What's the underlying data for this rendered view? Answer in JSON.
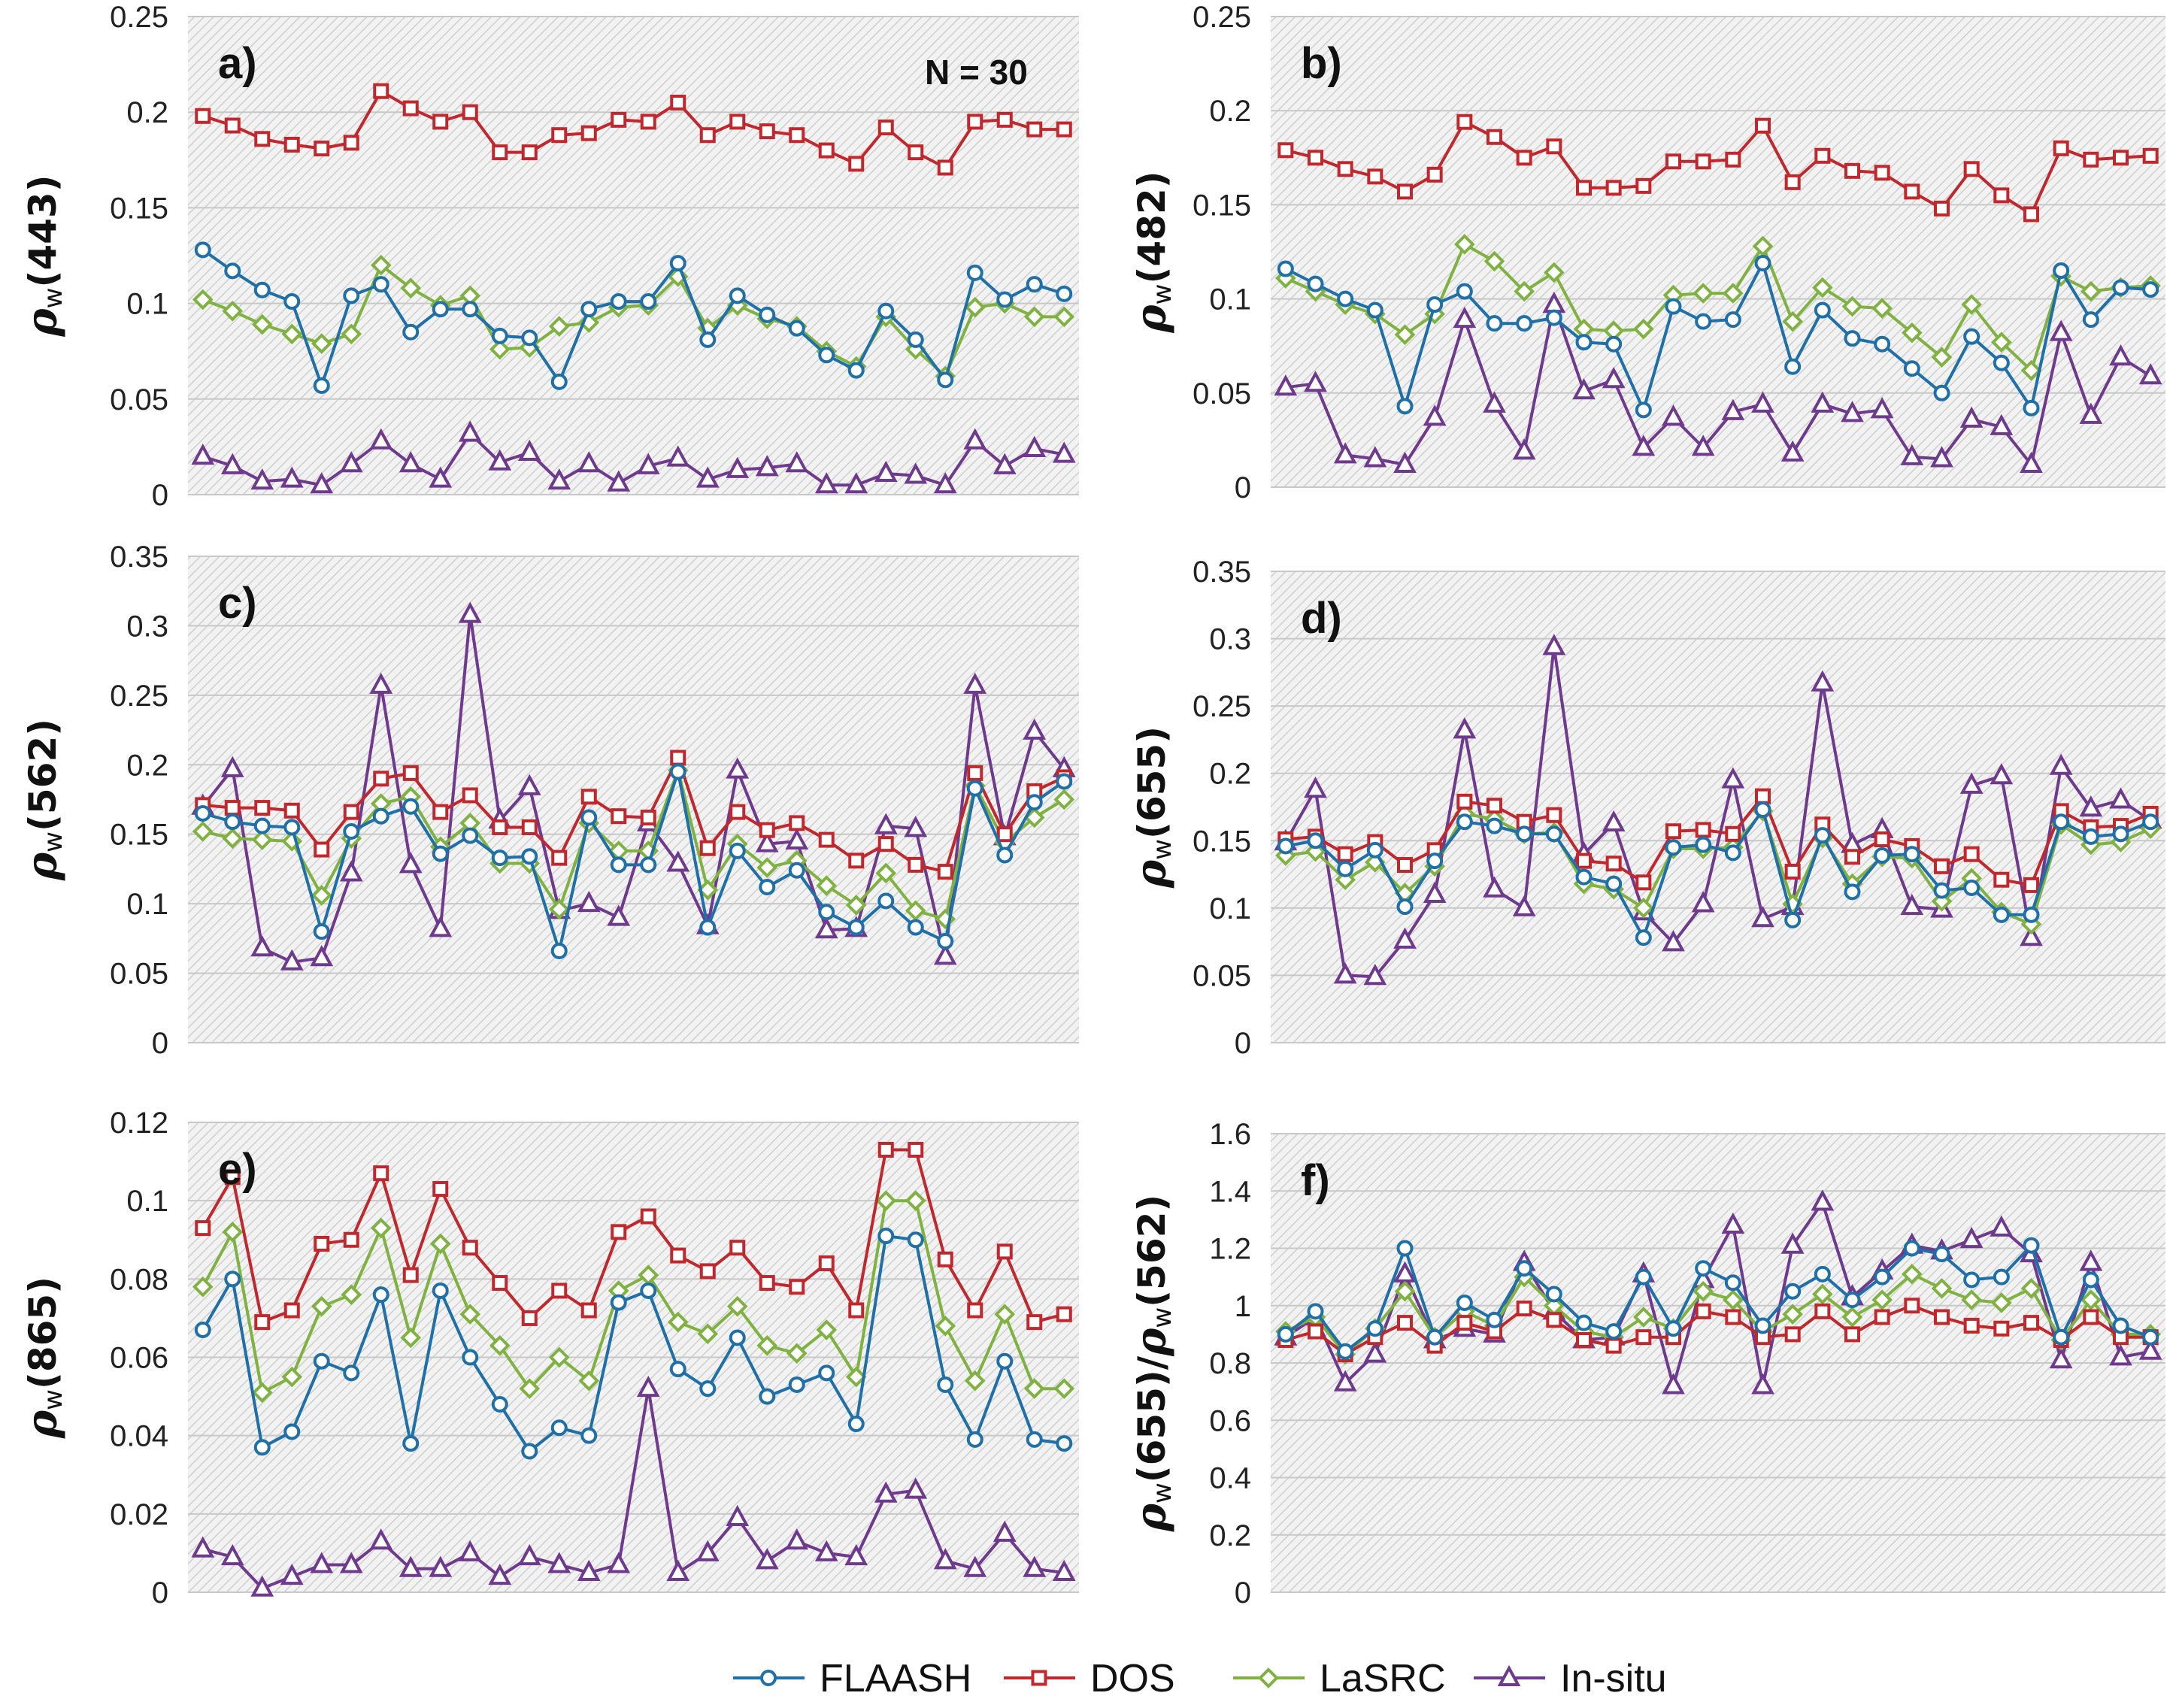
{
  "figure": {
    "n_label": "N = 30",
    "legend": [
      {
        "name": "FLAASH",
        "color": "#1f6fa8",
        "marker": "circle"
      },
      {
        "name": "DOS",
        "color": "#c0282d",
        "marker": "square"
      },
      {
        "name": "LaSRC",
        "color": "#7fb241",
        "marker": "diamond"
      },
      {
        "name": "In-situ",
        "color": "#6f3a8e",
        "marker": "triangle"
      }
    ]
  },
  "chart_data": [
    {
      "type": "line",
      "panel": "a)",
      "ylabel": "ρw(443)",
      "ylabel_sym": "ρ",
      "ylabel_sub": "w",
      "ylabel_rest": "(443)",
      "ylim": [
        0,
        0.25
      ],
      "yticks": [
        0,
        0.05,
        0.1,
        0.15,
        0.2,
        0.25
      ],
      "ytick_labels": [
        "0",
        "0.05",
        "0.1",
        "0.15",
        "0.2",
        "0.25"
      ],
      "series": [
        {
          "name": "FLAASH",
          "values": [
            0.128,
            0.117,
            0.107,
            0.101,
            0.057,
            0.104,
            0.11,
            0.085,
            0.097,
            0.097,
            0.083,
            0.082,
            0.059,
            0.097,
            0.101,
            0.101,
            0.121,
            0.081,
            0.104,
            0.094,
            0.087,
            0.073,
            0.065,
            0.096,
            0.081,
            0.06,
            0.116,
            0.102,
            0.11,
            0.105
          ]
        },
        {
          "name": "DOS",
          "values": [
            0.198,
            0.193,
            0.186,
            0.183,
            0.181,
            0.184,
            0.211,
            0.202,
            0.195,
            0.2,
            0.179,
            0.179,
            0.188,
            0.189,
            0.196,
            0.195,
            0.205,
            0.188,
            0.195,
            0.19,
            0.188,
            0.18,
            0.173,
            0.192,
            0.179,
            0.171,
            0.195,
            0.196,
            0.191,
            0.191
          ]
        },
        {
          "name": "LaSRC",
          "values": [
            0.102,
            0.096,
            0.089,
            0.084,
            0.079,
            0.084,
            0.12,
            0.108,
            0.099,
            0.104,
            0.076,
            0.077,
            0.088,
            0.09,
            0.098,
            0.099,
            0.114,
            0.087,
            0.099,
            0.092,
            0.088,
            0.075,
            0.067,
            0.093,
            0.076,
            0.062,
            0.098,
            0.1,
            0.093,
            0.093
          ]
        },
        {
          "name": "In-situ",
          "values": [
            0.02,
            0.015,
            0.007,
            0.008,
            0.005,
            0.016,
            0.028,
            0.016,
            0.008,
            0.032,
            0.017,
            0.022,
            0.007,
            0.016,
            0.006,
            0.015,
            0.019,
            0.008,
            0.013,
            0.014,
            0.016,
            0.005,
            0.005,
            0.011,
            0.01,
            0.005,
            0.028,
            0.015,
            0.024,
            0.021
          ]
        }
      ]
    },
    {
      "type": "line",
      "panel": "b)",
      "ylabel": "ρw(482)",
      "ylabel_sym": "ρ",
      "ylabel_sub": "w",
      "ylabel_rest": "(482)",
      "ylim": [
        0,
        0.25
      ],
      "yticks": [
        0,
        0.05,
        0.1,
        0.15,
        0.2,
        0.25
      ],
      "ytick_labels": [
        "0",
        "0.05",
        "0.1",
        "0.15",
        "0.2",
        "0.25"
      ],
      "series": [
        {
          "name": "FLAASH",
          "values": [
            0.116,
            0.108,
            0.1,
            0.094,
            0.043,
            0.097,
            0.104,
            0.087,
            0.087,
            0.09,
            0.077,
            0.076,
            0.041,
            0.096,
            0.088,
            0.089,
            0.119,
            0.064,
            0.094,
            0.079,
            0.076,
            0.063,
            0.05,
            0.08,
            0.066,
            0.042,
            0.115,
            0.089,
            0.106,
            0.105
          ]
        },
        {
          "name": "DOS",
          "values": [
            0.179,
            0.175,
            0.169,
            0.165,
            0.157,
            0.166,
            0.194,
            0.186,
            0.175,
            0.181,
            0.159,
            0.159,
            0.16,
            0.173,
            0.173,
            0.174,
            0.192,
            0.162,
            0.176,
            0.168,
            0.167,
            0.157,
            0.148,
            0.169,
            0.155,
            0.145,
            0.18,
            0.174,
            0.175,
            0.176
          ]
        },
        {
          "name": "LaSRC",
          "values": [
            0.111,
            0.104,
            0.097,
            0.092,
            0.081,
            0.092,
            0.129,
            0.12,
            0.104,
            0.114,
            0.084,
            0.083,
            0.084,
            0.102,
            0.103,
            0.103,
            0.128,
            0.088,
            0.106,
            0.096,
            0.095,
            0.082,
            0.069,
            0.097,
            0.077,
            0.062,
            0.112,
            0.104,
            0.106,
            0.107
          ]
        },
        {
          "name": "In-situ",
          "values": [
            0.053,
            0.055,
            0.017,
            0.015,
            0.012,
            0.037,
            0.089,
            0.044,
            0.019,
            0.097,
            0.051,
            0.057,
            0.021,
            0.037,
            0.021,
            0.04,
            0.044,
            0.018,
            0.044,
            0.039,
            0.041,
            0.016,
            0.015,
            0.036,
            0.032,
            0.012,
            0.082,
            0.038,
            0.069,
            0.059
          ]
        }
      ]
    },
    {
      "type": "line",
      "panel": "c)",
      "ylabel": "ρw(562)",
      "ylabel_sym": "ρ",
      "ylabel_sub": "w",
      "ylabel_rest": "(562)",
      "ylim": [
        0,
        0.35
      ],
      "yticks": [
        0,
        0.05,
        0.1,
        0.15,
        0.2,
        0.25,
        0.3,
        0.35
      ],
      "ytick_labels": [
        "0",
        "0.05",
        "0.1",
        "0.15",
        "0.2",
        "0.25",
        "0.3",
        "0.35"
      ],
      "series": [
        {
          "name": "FLAASH",
          "values": [
            0.165,
            0.159,
            0.156,
            0.155,
            0.08,
            0.152,
            0.163,
            0.17,
            0.136,
            0.149,
            0.133,
            0.134,
            0.066,
            0.162,
            0.128,
            0.128,
            0.195,
            0.083,
            0.138,
            0.112,
            0.124,
            0.094,
            0.083,
            0.102,
            0.083,
            0.073,
            0.183,
            0.135,
            0.173,
            0.188
          ]
        },
        {
          "name": "DOS",
          "values": [
            0.171,
            0.169,
            0.169,
            0.167,
            0.139,
            0.166,
            0.19,
            0.194,
            0.166,
            0.178,
            0.155,
            0.155,
            0.133,
            0.177,
            0.163,
            0.162,
            0.205,
            0.14,
            0.166,
            0.153,
            0.158,
            0.146,
            0.131,
            0.143,
            0.128,
            0.123,
            0.194,
            0.15,
            0.181,
            0.191
          ]
        },
        {
          "name": "LaSRC",
          "values": [
            0.152,
            0.147,
            0.146,
            0.145,
            0.106,
            0.147,
            0.172,
            0.177,
            0.141,
            0.158,
            0.129,
            0.129,
            0.096,
            0.158,
            0.138,
            0.138,
            0.196,
            0.11,
            0.143,
            0.126,
            0.131,
            0.113,
            0.099,
            0.122,
            0.095,
            0.089,
            0.185,
            0.144,
            0.162,
            0.175
          ]
        },
        {
          "name": "In-situ",
          "values": [
            0.17,
            0.197,
            0.068,
            0.058,
            0.061,
            0.122,
            0.257,
            0.128,
            0.082,
            0.308,
            0.16,
            0.184,
            0.095,
            0.1,
            0.09,
            0.158,
            0.129,
            0.084,
            0.196,
            0.143,
            0.145,
            0.081,
            0.082,
            0.156,
            0.154,
            0.062,
            0.257,
            0.148,
            0.224,
            0.197
          ]
        }
      ]
    },
    {
      "type": "line",
      "panel": "d)",
      "ylabel": "ρw(655)",
      "ylabel_sym": "ρ",
      "ylabel_sub": "w",
      "ylabel_rest": "(655)",
      "ylim": [
        0,
        0.35
      ],
      "yticks": [
        0,
        0.05,
        0.1,
        0.15,
        0.2,
        0.25,
        0.3,
        0.35
      ],
      "ytick_labels": [
        "0",
        "0.05",
        "0.1",
        "0.15",
        "0.2",
        "0.25",
        "0.3",
        "0.35"
      ],
      "series": [
        {
          "name": "FLAASH",
          "values": [
            0.146,
            0.15,
            0.129,
            0.143,
            0.101,
            0.135,
            0.164,
            0.161,
            0.155,
            0.155,
            0.123,
            0.118,
            0.078,
            0.145,
            0.147,
            0.141,
            0.173,
            0.091,
            0.154,
            0.112,
            0.139,
            0.14,
            0.113,
            0.115,
            0.095,
            0.095,
            0.164,
            0.153,
            0.155,
            0.164
          ]
        },
        {
          "name": "DOS",
          "values": [
            0.151,
            0.153,
            0.14,
            0.149,
            0.132,
            0.143,
            0.179,
            0.176,
            0.164,
            0.169,
            0.135,
            0.133,
            0.119,
            0.157,
            0.158,
            0.155,
            0.183,
            0.127,
            0.162,
            0.138,
            0.151,
            0.146,
            0.131,
            0.14,
            0.121,
            0.117,
            0.172,
            0.16,
            0.161,
            0.17
          ]
        },
        {
          "name": "LaSRC",
          "values": [
            0.139,
            0.142,
            0.121,
            0.134,
            0.111,
            0.131,
            0.17,
            0.166,
            0.155,
            0.156,
            0.118,
            0.114,
            0.1,
            0.144,
            0.144,
            0.145,
            0.172,
            0.103,
            0.152,
            0.118,
            0.138,
            0.137,
            0.105,
            0.122,
            0.097,
            0.088,
            0.162,
            0.147,
            0.149,
            0.159
          ]
        },
        {
          "name": "In-situ",
          "values": [
            0.149,
            0.188,
            0.05,
            0.049,
            0.076,
            0.11,
            0.232,
            0.114,
            0.1,
            0.294,
            0.14,
            0.163,
            0.097,
            0.074,
            0.103,
            0.195,
            0.092,
            0.101,
            0.267,
            0.147,
            0.158,
            0.101,
            0.099,
            0.191,
            0.198,
            0.078,
            0.205,
            0.174,
            0.18,
            0.165
          ]
        }
      ]
    },
    {
      "type": "line",
      "panel": "e)",
      "ylabel": "ρw(865)",
      "ylabel_sym": "ρ",
      "ylabel_sub": "w",
      "ylabel_rest": "(865)",
      "ylim": [
        0,
        0.12
      ],
      "yticks": [
        0,
        0.02,
        0.04,
        0.06,
        0.08,
        0.1,
        0.12
      ],
      "ytick_labels": [
        "0",
        "0.02",
        "0.04",
        "0.06",
        "0.08",
        "0.1",
        "0.12"
      ],
      "series": [
        {
          "name": "FLAASH",
          "values": [
            0.067,
            0.08,
            0.037,
            0.041,
            0.059,
            0.056,
            0.076,
            0.038,
            0.077,
            0.06,
            0.048,
            0.036,
            0.042,
            0.04,
            0.074,
            0.077,
            0.057,
            0.052,
            0.065,
            0.05,
            0.053,
            0.056,
            0.043,
            0.091,
            0.09,
            0.053,
            0.039,
            0.059,
            0.039,
            0.038
          ]
        },
        {
          "name": "DOS",
          "values": [
            0.093,
            0.106,
            0.069,
            0.072,
            0.089,
            0.09,
            0.107,
            0.081,
            0.103,
            0.088,
            0.079,
            0.07,
            0.077,
            0.072,
            0.092,
            0.096,
            0.086,
            0.082,
            0.088,
            0.079,
            0.078,
            0.084,
            0.072,
            0.113,
            0.113,
            0.085,
            0.072,
            0.087,
            0.069,
            0.071
          ]
        },
        {
          "name": "LaSRC",
          "values": [
            0.078,
            0.092,
            0.051,
            0.055,
            0.073,
            0.076,
            0.093,
            0.065,
            0.089,
            0.071,
            0.063,
            0.052,
            0.06,
            0.054,
            0.077,
            0.081,
            0.069,
            0.066,
            0.073,
            0.063,
            0.061,
            0.067,
            0.055,
            0.1,
            0.1,
            0.068,
            0.054,
            0.071,
            0.052,
            0.052
          ]
        },
        {
          "name": "In-situ",
          "values": [
            0.011,
            0.009,
            0.001,
            0.004,
            0.007,
            0.007,
            0.013,
            0.006,
            0.006,
            0.01,
            0.004,
            0.009,
            0.007,
            0.005,
            0.007,
            0.052,
            0.005,
            0.01,
            0.019,
            0.008,
            0.013,
            0.01,
            0.009,
            0.025,
            0.026,
            0.008,
            0.006,
            0.015,
            0.006,
            0.005
          ]
        }
      ]
    },
    {
      "type": "line",
      "panel": "f)",
      "ylabel": "ρw(655)/ρw(562)",
      "ylabel_sym": "ρ",
      "ylabel_sub": "w",
      "ylabel_rest": "(655)/",
      "ylabel_sym2": "ρ",
      "ylabel_sub2": "w",
      "ylabel_rest2": "(562)",
      "ylim": [
        0,
        1.6
      ],
      "yticks": [
        0,
        0.2,
        0.4,
        0.6,
        0.8,
        1,
        1.2,
        1.4,
        1.6
      ],
      "ytick_labels": [
        "0",
        "0.2",
        "0.4",
        "0.6",
        "0.8",
        "1",
        "1.2",
        "1.4",
        "1.6"
      ],
      "series": [
        {
          "name": "FLAASH",
          "values": [
            0.9,
            0.98,
            0.84,
            0.92,
            1.2,
            0.89,
            1.01,
            0.95,
            1.13,
            1.04,
            0.94,
            0.91,
            1.1,
            0.92,
            1.13,
            1.08,
            0.93,
            1.05,
            1.11,
            1.02,
            1.1,
            1.2,
            1.18,
            1.09,
            1.1,
            1.21,
            0.89,
            1.09,
            0.93,
            0.89
          ]
        },
        {
          "name": "DOS",
          "values": [
            0.88,
            0.91,
            0.83,
            0.89,
            0.94,
            0.86,
            0.94,
            0.91,
            0.99,
            0.95,
            0.88,
            0.86,
            0.89,
            0.89,
            0.98,
            0.96,
            0.89,
            0.9,
            0.98,
            0.9,
            0.96,
            1.0,
            0.96,
            0.93,
            0.92,
            0.94,
            0.88,
            0.96,
            0.89,
            0.89
          ]
        },
        {
          "name": "LaSRC",
          "values": [
            0.91,
            0.96,
            0.83,
            0.92,
            1.05,
            0.89,
            0.98,
            0.93,
            1.1,
            1.0,
            0.91,
            0.89,
            0.96,
            0.92,
            1.05,
            1.02,
            0.91,
            0.97,
            1.04,
            0.96,
            1.02,
            1.11,
            1.06,
            1.02,
            1.01,
            1.06,
            0.88,
            1.02,
            0.9,
            0.9
          ]
        },
        {
          "name": "In-situ",
          "values": [
            0.89,
            0.96,
            0.73,
            0.83,
            1.11,
            0.88,
            0.92,
            0.9,
            1.15,
            0.98,
            0.88,
            0.89,
            1.11,
            0.72,
            1.09,
            1.28,
            0.72,
            1.21,
            1.36,
            1.03,
            1.12,
            1.21,
            1.19,
            1.23,
            1.27,
            1.18,
            0.81,
            1.15,
            0.82,
            0.84
          ]
        }
      ]
    }
  ]
}
